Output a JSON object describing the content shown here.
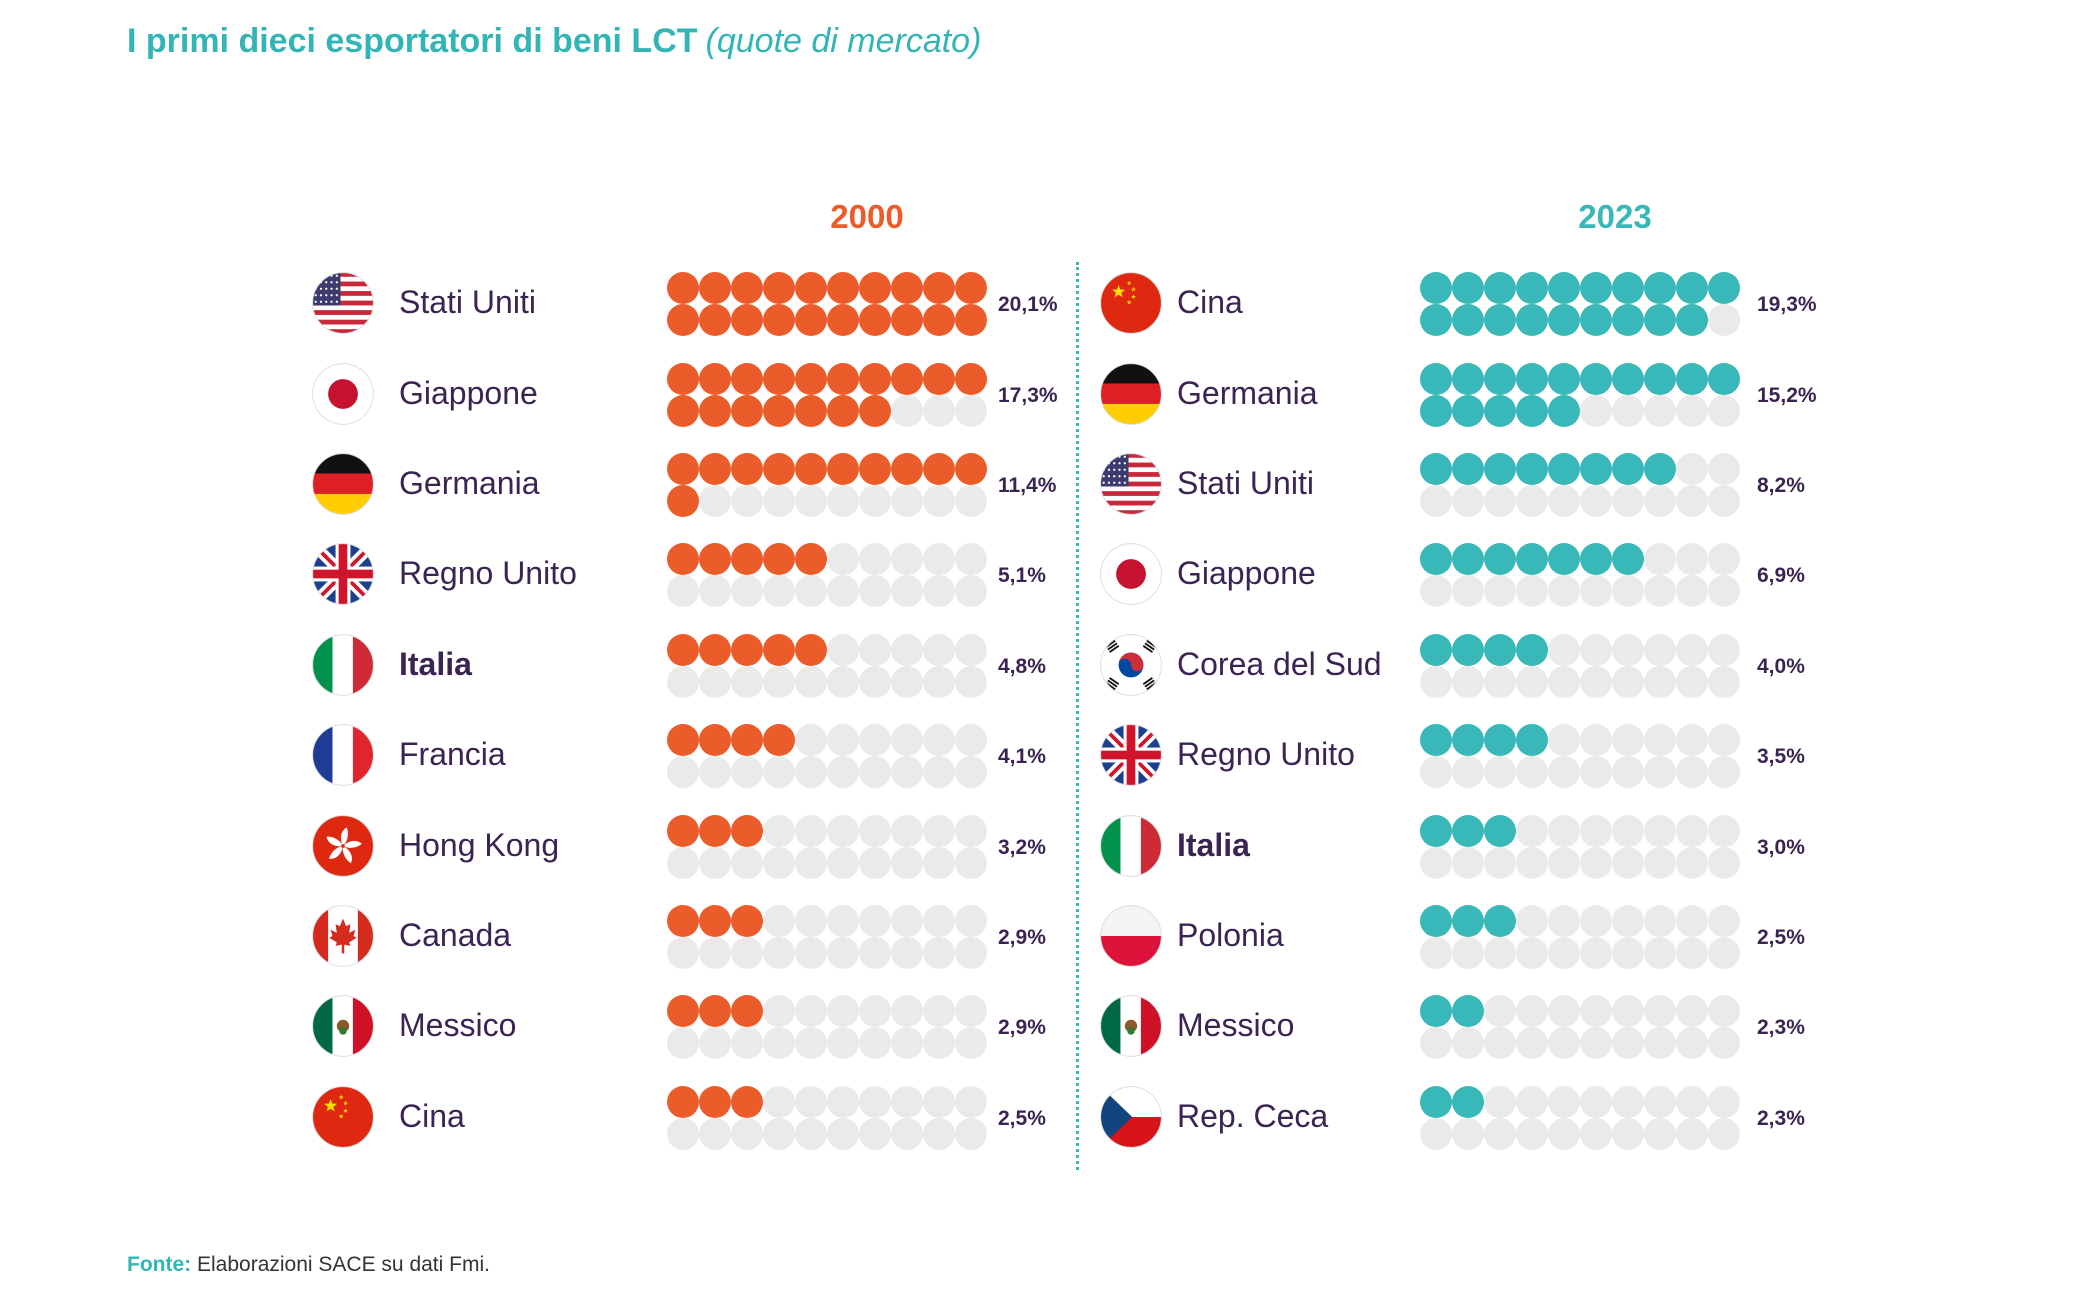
{
  "title": {
    "main": "I primi dieci esportatori di beni LCT",
    "sub": "(quote di mercato)"
  },
  "source": {
    "label": "Fonte:",
    "text": "Elaborazioni SACE su dati Fmi."
  },
  "colors": {
    "series_2000": "#ec5c2a",
    "series_2023": "#38b8b8",
    "empty": "#eaeaea",
    "text": "#3a2452",
    "accent": "#33b5b5"
  },
  "chart_data": [
    {
      "type": "bar",
      "title": "2000",
      "unit": "%",
      "categories": [
        "Stati Uniti",
        "Giappone",
        "Germania",
        "Regno Unito",
        "Italia",
        "Francia",
        "Hong Kong",
        "Canada",
        "Messico",
        "Cina"
      ],
      "values": [
        20.1,
        17.3,
        11.4,
        5.1,
        4.8,
        4.1,
        3.2,
        2.9,
        2.9,
        2.5
      ],
      "labels": [
        "20,1%",
        "17,3%",
        "11,4%",
        "5,1%",
        "4,8%",
        "4,1%",
        "3,2%",
        "2,9%",
        "2,9%",
        "2,5%"
      ],
      "flags": [
        "flag-us-icon",
        "flag-jp-icon",
        "flag-de-icon",
        "flag-gb-icon",
        "flag-it-icon",
        "flag-fr-icon",
        "flag-hk-icon",
        "flag-ca-icon",
        "flag-mx-icon",
        "flag-cn-icon"
      ],
      "highlight": "Italia"
    },
    {
      "type": "bar",
      "title": "2023",
      "unit": "%",
      "categories": [
        "Cina",
        "Germania",
        "Stati Uniti",
        "Giappone",
        "Corea del Sud",
        "Regno Unito",
        "Italia",
        "Polonia",
        "Messico",
        "Rep. Ceca"
      ],
      "values": [
        19.3,
        15.2,
        8.2,
        6.9,
        4.0,
        3.5,
        3.0,
        2.5,
        2.3,
        2.3
      ],
      "labels": [
        "19,3%",
        "15,2%",
        "8,2%",
        "6,9%",
        "4,0%",
        "3,5%",
        "3,0%",
        "2,5%",
        "2,3%",
        "2,3%"
      ],
      "flags": [
        "flag-cn-icon",
        "flag-de-icon",
        "flag-us-icon",
        "flag-jp-icon",
        "flag-kr-icon",
        "flag-gb-icon",
        "flag-it-icon",
        "flag-pl-icon",
        "flag-mx-icon",
        "flag-cz-icon"
      ],
      "highlight": "Italia"
    }
  ]
}
